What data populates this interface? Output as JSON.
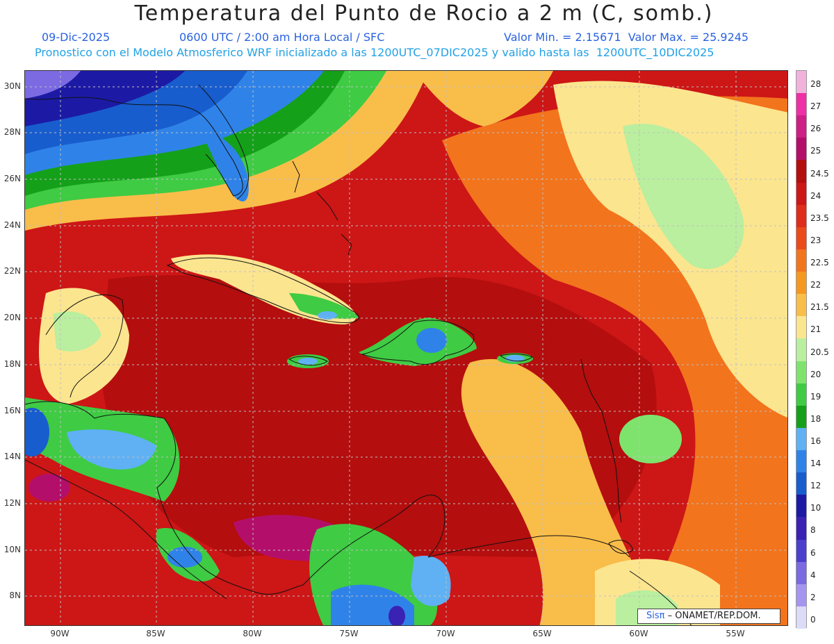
{
  "header": {
    "title": "Temperatura del Punto de Rocio a 2 m (C, somb.)",
    "date": "09-Dic-2025",
    "time": "0600 UTC / 2:00 am Hora Local / SFC",
    "minmax": "Valor Min. = 2.15671  Valor Max. = 25.9245",
    "model_info": "Pronostico con el Modelo Atmosferico WRF inicializado a las 1200UTC_07DIC2025 y valido hasta las  1200UTC_10DIC2025"
  },
  "map": {
    "lat_labels": [
      "30N",
      "28N",
      "26N",
      "24N",
      "22N",
      "20N",
      "18N",
      "16N",
      "14N",
      "12N",
      "10N",
      "8N"
    ],
    "lon_labels": [
      "90W",
      "85W",
      "80W",
      "75W",
      "70W",
      "65W",
      "60W",
      "55W"
    ]
  },
  "legend": {
    "levels": [
      "28",
      "27",
      "26",
      "25",
      "24.5",
      "24",
      "23.5",
      "23",
      "22.5",
      "22",
      "21.5",
      "21",
      "20.5",
      "20",
      "19",
      "18",
      "16",
      "14",
      "12",
      "10",
      "8",
      "6",
      "4",
      "2",
      "0"
    ],
    "colors": [
      "#f1b3dc",
      "#ee2fa5",
      "#d01e87",
      "#b30f6a",
      "#b40e0e",
      "#cd1616",
      "#e02c1a",
      "#eb4a1b",
      "#f2741d",
      "#f6981f",
      "#f9bd4a",
      "#fce58f",
      "#b9ef9e",
      "#7ee36d",
      "#3fcb43",
      "#15a01a",
      "#5fb1f4",
      "#2f83e8",
      "#185dce",
      "#1c1aa5",
      "#3a22b4",
      "#4b3fce",
      "#7b6ae2",
      "#a496ef",
      "#dcdcf8"
    ]
  },
  "credit": {
    "logo": "Sisπ",
    "text": "– ONAMET/REP.DOM."
  }
}
